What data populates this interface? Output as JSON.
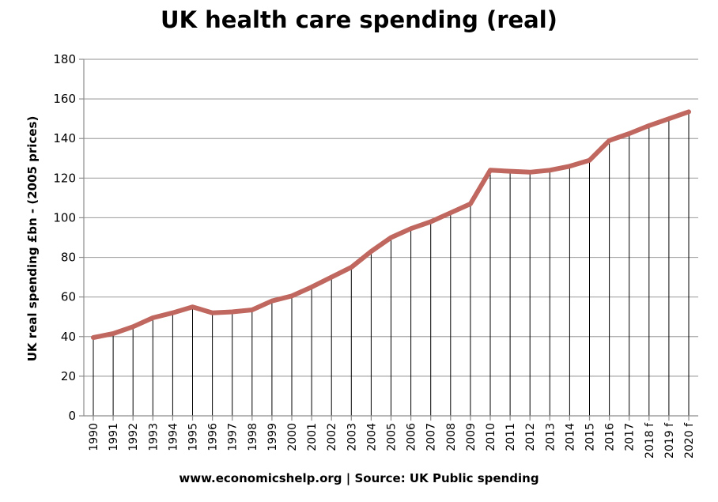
{
  "chart_data": {
    "type": "line",
    "title": "UK health care spending (real)",
    "xlabel": "",
    "ylabel": "UK real spending £bn - (2005 prices)",
    "footer": "www.economicshelp.org | Source: UK Public spending",
    "categories": [
      "1990",
      "1991",
      "1992",
      "1993",
      "1994",
      "1995",
      "1996",
      "1997",
      "1998",
      "1999",
      "2000",
      "2001",
      "2002",
      "2003",
      "2004",
      "2005",
      "2006",
      "2007",
      "2008",
      "2009",
      "2010",
      "2011",
      "2012",
      "2013",
      "2014",
      "2015",
      "2016",
      "2017",
      "2018 f",
      "2019 f",
      "2020 f"
    ],
    "series": [
      {
        "values": [
          39.5,
          41.5,
          45,
          49.5,
          52,
          55,
          52,
          52.5,
          53.5,
          58,
          60.5,
          65,
          70,
          75,
          83,
          90,
          94.5,
          98,
          102.5,
          107,
          124,
          123.5,
          123,
          124,
          126,
          129,
          139,
          142.5,
          146.5,
          150,
          153.5
        ],
        "color": "#c0675f"
      }
    ],
    "yticks": [
      0,
      20,
      40,
      60,
      80,
      100,
      120,
      140,
      160,
      180
    ],
    "ylim": [
      0,
      180
    ],
    "grid": true,
    "drop_lines": true,
    "colors": {
      "gridline": "#a6a6a6",
      "axis": "#8c8c8c",
      "drop_line": "#000000",
      "series": "#c0675f"
    }
  }
}
